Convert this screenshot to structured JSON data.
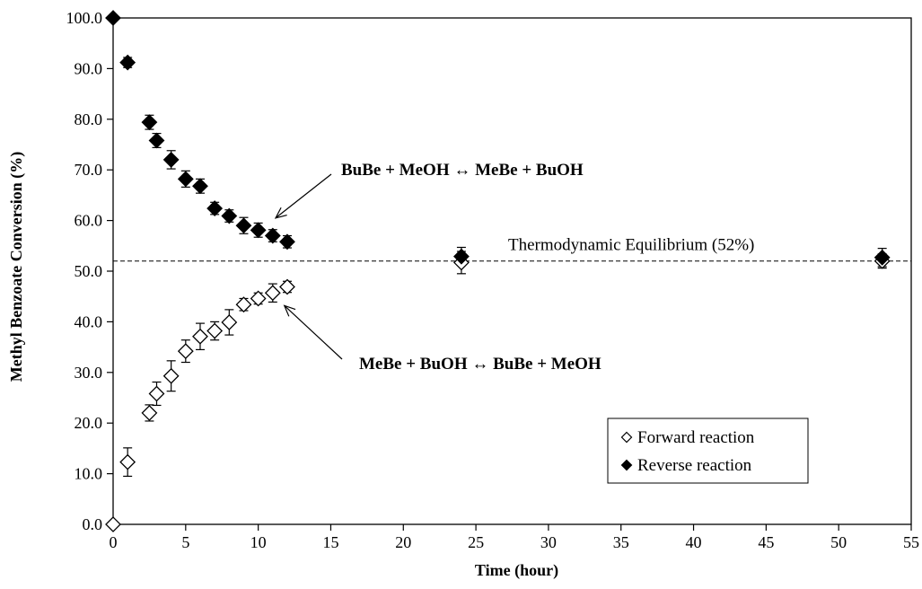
{
  "chart_data": {
    "type": "scatter",
    "title": "",
    "xlabel": "Time (hour)",
    "ylabel": "Methyl Benzoate Conversion (%)",
    "xlim": [
      0,
      55
    ],
    "ylim": [
      0,
      100
    ],
    "xticks": [
      "0",
      "5",
      "10",
      "15",
      "20",
      "25",
      "30",
      "35",
      "40",
      "45",
      "50",
      "55"
    ],
    "yticks": [
      "0.0",
      "10.0",
      "20.0",
      "30.0",
      "40.0",
      "50.0",
      "60.0",
      "70.0",
      "80.0",
      "90.0",
      "100.0"
    ],
    "grid": false,
    "legend_position": "bottom-right",
    "series": [
      {
        "name": "Forward reaction",
        "marker": "open-diamond",
        "color": "#000000",
        "points": [
          {
            "x": 0,
            "y": 0.0,
            "err": 0
          },
          {
            "x": 1,
            "y": 12.3,
            "err": 2.8
          },
          {
            "x": 2.5,
            "y": 22.0,
            "err": 1.6
          },
          {
            "x": 3,
            "y": 25.8,
            "err": 2.3
          },
          {
            "x": 4,
            "y": 29.3,
            "err": 3.0
          },
          {
            "x": 5,
            "y": 34.2,
            "err": 2.2
          },
          {
            "x": 6,
            "y": 37.1,
            "err": 2.6
          },
          {
            "x": 7,
            "y": 38.2,
            "err": 1.8
          },
          {
            "x": 8,
            "y": 39.9,
            "err": 2.5
          },
          {
            "x": 9,
            "y": 43.4,
            "err": 1.2
          },
          {
            "x": 10,
            "y": 44.6,
            "err": 1.1
          },
          {
            "x": 11,
            "y": 45.7,
            "err": 1.8
          },
          {
            "x": 12,
            "y": 46.9,
            "err": 1.1
          },
          {
            "x": 24,
            "y": 51.7,
            "err": 2.2
          },
          {
            "x": 53,
            "y": 52.0,
            "err": 1.4
          }
        ]
      },
      {
        "name": "Reverse reaction",
        "marker": "filled-diamond",
        "color": "#000000",
        "points": [
          {
            "x": 0,
            "y": 100.0,
            "err": 0
          },
          {
            "x": 1,
            "y": 91.2,
            "err": 1.0
          },
          {
            "x": 2.5,
            "y": 79.4,
            "err": 1.4
          },
          {
            "x": 3,
            "y": 75.8,
            "err": 1.4
          },
          {
            "x": 4,
            "y": 72.0,
            "err": 1.8
          },
          {
            "x": 5,
            "y": 68.2,
            "err": 1.6
          },
          {
            "x": 6,
            "y": 66.8,
            "err": 1.4
          },
          {
            "x": 7,
            "y": 62.4,
            "err": 1.2
          },
          {
            "x": 8,
            "y": 60.9,
            "err": 1.2
          },
          {
            "x": 9,
            "y": 59.0,
            "err": 1.6
          },
          {
            "x": 10,
            "y": 58.1,
            "err": 1.4
          },
          {
            "x": 11,
            "y": 57.0,
            "err": 1.2
          },
          {
            "x": 12,
            "y": 55.8,
            "err": 1.2
          },
          {
            "x": 24,
            "y": 52.9,
            "err": 1.8
          },
          {
            "x": 53,
            "y": 52.7,
            "err": 1.8
          }
        ]
      }
    ],
    "reference_line": {
      "y": 52,
      "style": "dashed",
      "label": "Thermodynamic Equilibrium (52%)"
    },
    "annotations": [
      {
        "text": "BuBe + MeOH ↔ MeBe + BuOH",
        "bold": true,
        "arrow_to": {
          "x": 11.2,
          "y": 60.5
        }
      },
      {
        "text": "MeBe + BuOH ↔ BuBe + MeOH",
        "bold": true,
        "arrow_to": {
          "x": 11.8,
          "y": 43.2
        }
      }
    ]
  }
}
